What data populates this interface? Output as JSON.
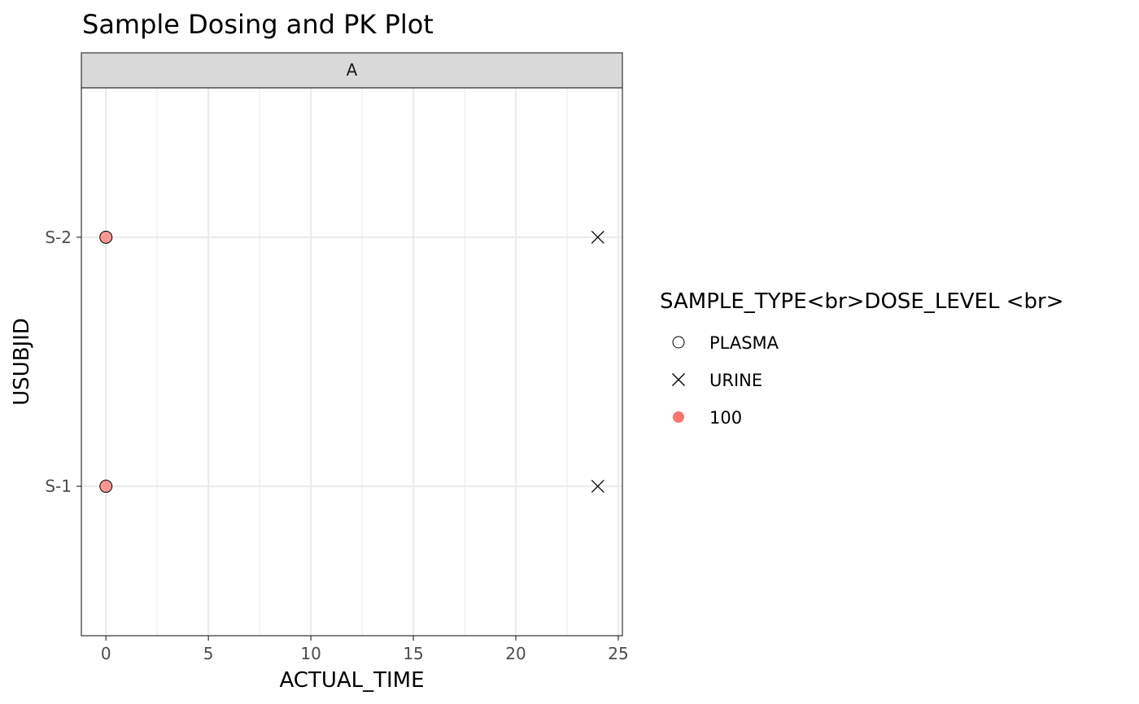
{
  "chart_data": {
    "type": "scatter",
    "title": "Sample Dosing and PK Plot",
    "facet_label": "A",
    "xlabel": "ACTUAL_TIME",
    "ylabel": "USUBJID",
    "xlim": [
      -1.2,
      25.2
    ],
    "x_ticks": [
      0,
      5,
      10,
      15,
      20,
      25
    ],
    "y_categories": [
      "S-1",
      "S-2"
    ],
    "grid": true,
    "legend": {
      "title": "SAMPLE_TYPE<br>DOSE_LEVEL <br>",
      "position": "right",
      "items": [
        {
          "label": "PLASMA",
          "shape": "open-circle"
        },
        {
          "label": "URINE",
          "shape": "cross"
        },
        {
          "label": "100",
          "shape": "filled-circle",
          "color": "#F8766D"
        }
      ]
    },
    "series": [
      {
        "name": "PLASMA",
        "shape": "circle",
        "fill": "#F8766D",
        "points": [
          {
            "x": 0,
            "y": "S-1"
          },
          {
            "x": 0,
            "y": "S-2"
          }
        ]
      },
      {
        "name": "URINE",
        "shape": "cross",
        "points": [
          {
            "x": 24,
            "y": "S-1"
          },
          {
            "x": 24,
            "y": "S-2"
          }
        ]
      }
    ],
    "colors": {
      "dose": "#F8766D",
      "grid_major": "#ebebeb",
      "strip_fill": "#d9d9d9"
    }
  }
}
